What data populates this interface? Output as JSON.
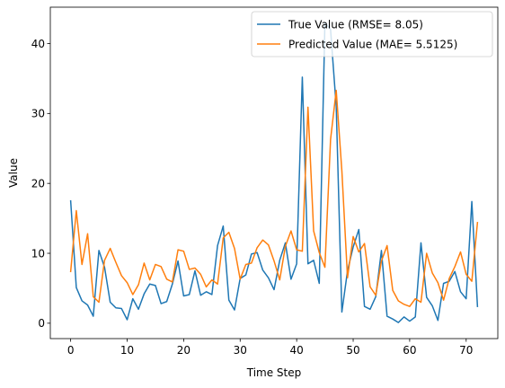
{
  "chart_data": {
    "type": "line",
    "title": "",
    "xlabel": "Time Step",
    "ylabel": "Value",
    "xlim": [
      -3.6,
      75.6
    ],
    "ylim": [
      -2.2,
      45.2
    ],
    "xticks": [
      0,
      10,
      20,
      30,
      40,
      50,
      60,
      70
    ],
    "yticks": [
      0,
      10,
      20,
      30,
      40
    ],
    "grid": false,
    "legend": "top-right",
    "x": [
      0,
      1,
      2,
      3,
      4,
      5,
      6,
      7,
      8,
      9,
      10,
      11,
      12,
      13,
      14,
      15,
      16,
      17,
      18,
      19,
      20,
      21,
      22,
      23,
      24,
      25,
      26,
      27,
      28,
      29,
      30,
      31,
      32,
      33,
      34,
      35,
      36,
      37,
      38,
      39,
      40,
      41,
      42,
      43,
      44,
      45,
      46,
      47,
      48,
      49,
      50,
      51,
      52,
      53,
      54,
      55,
      56,
      57,
      58,
      59,
      60,
      61,
      62,
      63,
      64,
      65,
      66,
      67,
      68,
      69,
      70,
      71,
      72
    ],
    "series": [
      {
        "name": "True Value (RMSE= 8.05)",
        "color": "#1f77b4",
        "values": [
          17.5,
          5.1,
          3.2,
          2.6,
          1.0,
          10.4,
          8.0,
          3.0,
          2.2,
          2.1,
          0.5,
          3.5,
          2.0,
          4.2,
          5.6,
          5.4,
          2.8,
          3.1,
          5.6,
          8.9,
          3.9,
          4.1,
          7.5,
          4.0,
          4.5,
          4.1,
          11.1,
          13.9,
          3.3,
          1.9,
          6.4,
          6.9,
          9.9,
          10.1,
          7.6,
          6.5,
          4.8,
          9.0,
          11.5,
          6.3,
          8.5,
          35.2,
          8.5,
          9.0,
          5.7,
          43.0,
          42.0,
          31.0,
          1.6,
          7.5,
          10.9,
          13.4,
          2.4,
          2.0,
          3.8,
          10.4,
          1.0,
          0.6,
          0.1,
          0.9,
          0.3,
          0.9,
          11.5,
          3.7,
          2.5,
          0.4,
          5.7,
          6.0,
          7.4,
          4.5,
          3.5,
          17.4,
          2.4
        ]
      },
      {
        "name": "Predicted Value (MAE= 5.5125)",
        "color": "#ff7f0e",
        "values": [
          7.4,
          16.1,
          8.4,
          12.8,
          3.8,
          3.0,
          9.0,
          10.7,
          8.7,
          6.8,
          5.8,
          4.1,
          5.5,
          8.6,
          6.2,
          8.4,
          8.1,
          6.3,
          5.9,
          10.5,
          10.3,
          7.7,
          7.9,
          7.0,
          5.2,
          6.2,
          5.6,
          12.2,
          13.0,
          10.7,
          6.3,
          8.4,
          8.6,
          10.8,
          11.9,
          11.2,
          8.9,
          6.2,
          11.0,
          13.2,
          10.5,
          10.3,
          30.9,
          13.2,
          10.1,
          8.0,
          26.3,
          33.3,
          21.8,
          6.5,
          12.4,
          10.2,
          11.4,
          5.2,
          4.0,
          8.9,
          11.1,
          4.7,
          3.2,
          2.7,
          2.4,
          3.5,
          3.0,
          10.0,
          7.2,
          5.8,
          3.3,
          6.4,
          8.1,
          10.2,
          7.0,
          6.0,
          14.4
        ]
      }
    ]
  }
}
